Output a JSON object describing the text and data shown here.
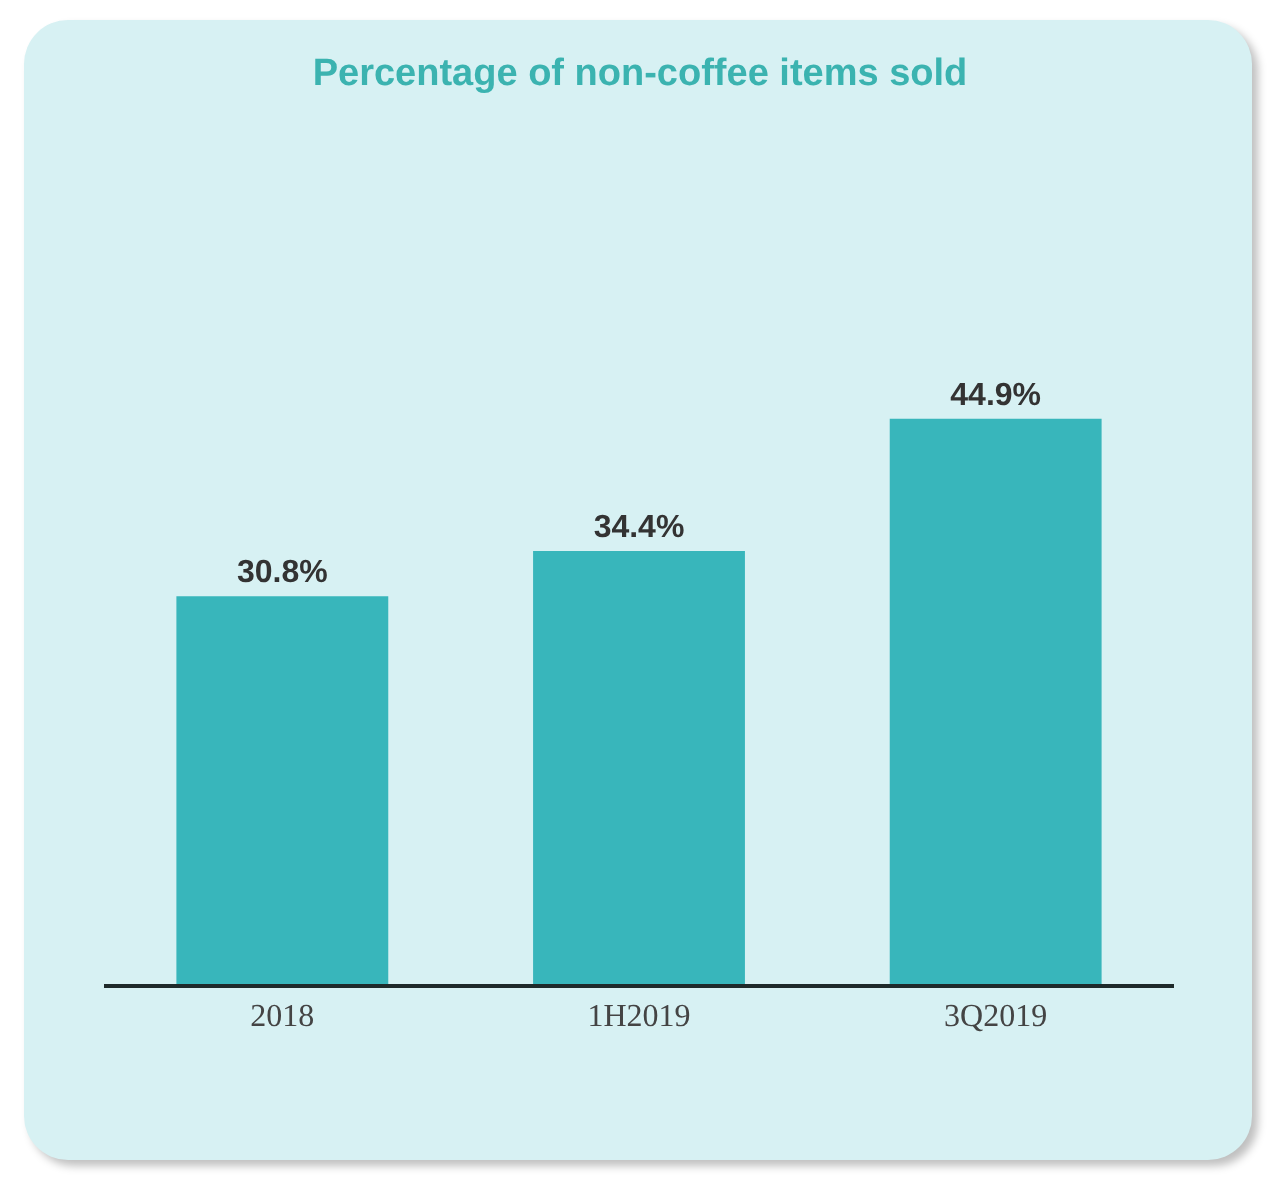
{
  "chart_data": {
    "type": "bar",
    "title": "Percentage of non-coffee items sold",
    "categories": [
      "2018",
      "1H2019",
      "3Q2019"
    ],
    "values": [
      30.8,
      34.4,
      44.9
    ],
    "value_labels": [
      "30.8%",
      "34.4%",
      "44.9%"
    ],
    "color": "#38b6bb"
  }
}
